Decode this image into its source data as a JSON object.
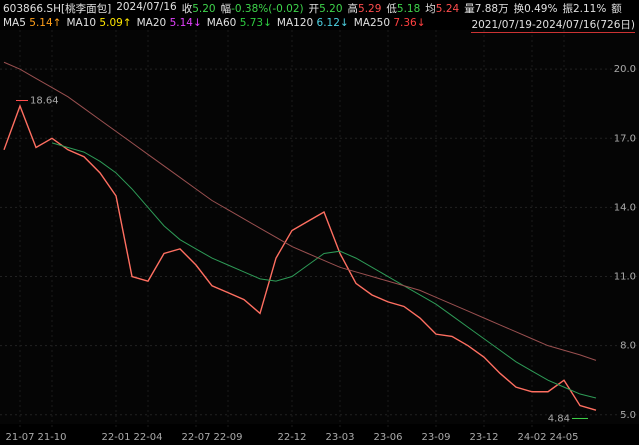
{
  "header": {
    "code": "603866.SH[桃李面包]",
    "date": "2024/07/16",
    "items": [
      {
        "label": "收",
        "value": "5.20",
        "color": "#3ed34b"
      },
      {
        "label": "幅",
        "value": "-0.38%(-0.02)",
        "color": "#3ed34b"
      },
      {
        "label": "开",
        "value": "5.20",
        "color": "#3ed34b"
      },
      {
        "label": "高",
        "value": "5.29",
        "color": "#ff4d4d"
      },
      {
        "label": "低",
        "value": "5.18",
        "color": "#3ed34b"
      },
      {
        "label": "均",
        "value": "5.24",
        "color": "#ff4d4d"
      },
      {
        "label": "量",
        "value": "7.88万",
        "color": "#e0e0e0"
      },
      {
        "label": "换",
        "value": "0.49%",
        "color": "#e0e0e0"
      },
      {
        "label": "振",
        "value": "2.11%",
        "color": "#e0e0e0"
      },
      {
        "label": "额",
        "value": "",
        "color": "#e0e0e0"
      }
    ]
  },
  "ma_legend": [
    {
      "name": "MA5",
      "value": "5.14↑",
      "color": "#ff9f1a"
    },
    {
      "name": "MA10",
      "value": "5.09↑",
      "color": "#ffe600"
    },
    {
      "name": "MA20",
      "value": "5.14↓",
      "color": "#e040fb"
    },
    {
      "name": "MA60",
      "value": "5.73↓",
      "color": "#2ecc40"
    },
    {
      "name": "MA120",
      "value": "6.12↓",
      "color": "#4dd0e1"
    },
    {
      "name": "MA250",
      "value": "7.36↓",
      "color": "#ff4040"
    }
  ],
  "range": "2021/07/19-2024/07/16(726日)",
  "chart_data": {
    "type": "line",
    "categories": [
      null,
      "21-07",
      null,
      "21-10",
      null,
      null,
      null,
      "22-01",
      null,
      "22-04",
      null,
      null,
      "22-07",
      null,
      "22-09",
      null,
      null,
      null,
      "22-12",
      null,
      null,
      "23-03",
      null,
      null,
      "23-06",
      null,
      null,
      "23-09",
      null,
      null,
      "23-12",
      null,
      null,
      "24-02",
      null,
      "24-05",
      null,
      null
    ],
    "series": [
      {
        "name": "收",
        "color": "#ff6f61",
        "values": [
          16.5,
          18.4,
          16.6,
          17.0,
          16.5,
          16.2,
          15.5,
          14.5,
          11.0,
          10.8,
          12.0,
          12.2,
          11.5,
          10.6,
          10.3,
          10.0,
          9.4,
          11.8,
          13.0,
          13.4,
          13.8,
          12.0,
          10.7,
          10.2,
          9.9,
          9.7,
          9.2,
          8.5,
          8.4,
          8.0,
          7.5,
          6.8,
          6.2,
          6.0,
          6.0,
          6.5,
          5.4,
          5.2
        ]
      },
      {
        "name": "MA60",
        "color": "#2e9b57",
        "values": [
          null,
          null,
          null,
          16.8,
          16.6,
          16.4,
          16.0,
          15.5,
          14.8,
          14.0,
          13.2,
          12.6,
          12.2,
          11.8,
          11.5,
          11.2,
          10.9,
          10.8,
          11.0,
          11.5,
          12.0,
          12.1,
          11.8,
          11.4,
          11.0,
          10.6,
          10.2,
          9.8,
          9.3,
          8.8,
          8.3,
          7.8,
          7.3,
          6.9,
          6.5,
          6.2,
          5.9,
          5.73
        ]
      },
      {
        "name": "MA250",
        "color": "#9a5050",
        "values": [
          20.3,
          20.0,
          19.6,
          19.2,
          18.8,
          18.3,
          17.8,
          17.3,
          16.8,
          16.3,
          15.8,
          15.3,
          14.8,
          14.3,
          13.9,
          13.5,
          13.1,
          12.7,
          12.3,
          12.0,
          11.7,
          11.4,
          11.2,
          11.0,
          10.8,
          10.6,
          10.4,
          10.1,
          9.8,
          9.5,
          9.2,
          8.9,
          8.6,
          8.3,
          8.0,
          7.8,
          7.6,
          7.36
        ]
      }
    ],
    "high": 18.64,
    "low": 4.84,
    "ylim": [
      4.6,
      21.7
    ],
    "yticks": [
      {
        "value": 5,
        "label": "5.0"
      },
      {
        "value": 8,
        "label": "8.0"
      },
      {
        "value": 11,
        "label": "11.0"
      },
      {
        "value": 14,
        "label": "14.0"
      },
      {
        "value": 17,
        "label": "17.0"
      },
      {
        "value": 20,
        "label": "20.0"
      }
    ],
    "grid": true
  }
}
